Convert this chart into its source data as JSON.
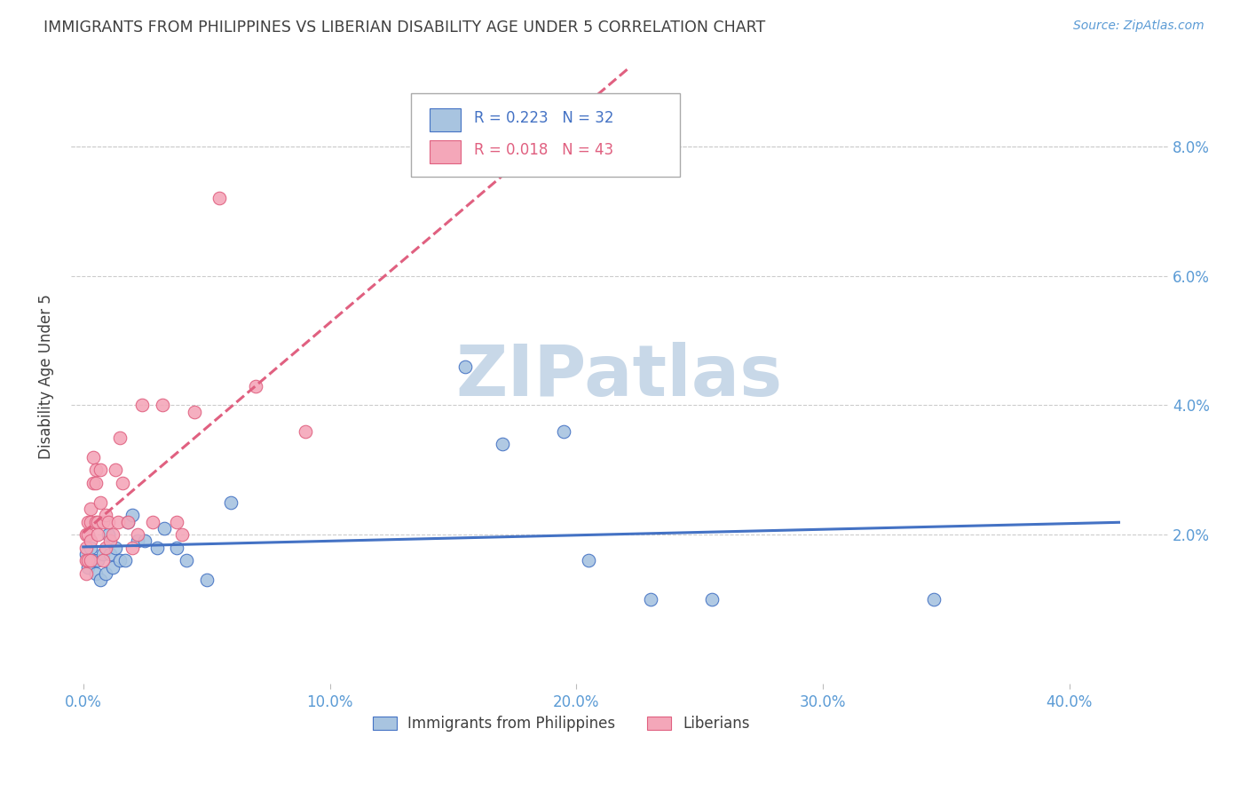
{
  "title": "IMMIGRANTS FROM PHILIPPINES VS LIBERIAN DISABILITY AGE UNDER 5 CORRELATION CHART",
  "source": "Source: ZipAtlas.com",
  "ylabel": "Disability Age Under 5",
  "ylabel_right_ticks": [
    "8.0%",
    "6.0%",
    "4.0%",
    "2.0%"
  ],
  "ylabel_right_vals": [
    0.08,
    0.06,
    0.04,
    0.02
  ],
  "xlabel_ticks": [
    "0.0%",
    "10.0%",
    "20.0%",
    "30.0%",
    "40.0%"
  ],
  "xlabel_tick_vals": [
    0.0,
    0.1,
    0.2,
    0.3,
    0.4
  ],
  "xlim": [
    -0.005,
    0.44
  ],
  "ylim": [
    -0.003,
    0.092
  ],
  "blue_R": 0.223,
  "blue_N": 32,
  "pink_R": 0.018,
  "pink_N": 43,
  "blue_color": "#a8c4e0",
  "pink_color": "#f4a7b9",
  "blue_line_color": "#4472c4",
  "pink_line_color": "#e06080",
  "title_color": "#404040",
  "axis_color": "#5b9bd5",
  "legend_text_blue": "#4472c4",
  "legend_text_pink": "#e06080",
  "watermark_color": "#c8d8e8",
  "grid_color": "#cccccc",
  "blue_x": [
    0.001,
    0.002,
    0.003,
    0.004,
    0.005,
    0.006,
    0.007,
    0.008,
    0.009,
    0.01,
    0.011,
    0.012,
    0.013,
    0.015,
    0.017,
    0.018,
    0.02,
    0.022,
    0.025,
    0.03,
    0.033,
    0.038,
    0.042,
    0.05,
    0.06,
    0.155,
    0.17,
    0.195,
    0.205,
    0.23,
    0.255,
    0.345
  ],
  "blue_y": [
    0.017,
    0.015,
    0.018,
    0.016,
    0.014,
    0.016,
    0.013,
    0.017,
    0.014,
    0.02,
    0.017,
    0.015,
    0.018,
    0.016,
    0.016,
    0.022,
    0.023,
    0.019,
    0.019,
    0.018,
    0.021,
    0.018,
    0.016,
    0.013,
    0.025,
    0.046,
    0.034,
    0.036,
    0.016,
    0.01,
    0.01,
    0.01
  ],
  "pink_x": [
    0.001,
    0.001,
    0.001,
    0.001,
    0.002,
    0.002,
    0.002,
    0.003,
    0.003,
    0.003,
    0.003,
    0.004,
    0.004,
    0.005,
    0.005,
    0.005,
    0.006,
    0.006,
    0.007,
    0.007,
    0.008,
    0.008,
    0.009,
    0.009,
    0.01,
    0.011,
    0.012,
    0.013,
    0.014,
    0.015,
    0.016,
    0.018,
    0.02,
    0.022,
    0.024,
    0.028,
    0.032,
    0.038,
    0.04,
    0.045,
    0.055,
    0.07,
    0.09
  ],
  "pink_y": [
    0.02,
    0.018,
    0.016,
    0.014,
    0.022,
    0.02,
    0.016,
    0.024,
    0.022,
    0.019,
    0.016,
    0.032,
    0.028,
    0.03,
    0.028,
    0.022,
    0.022,
    0.02,
    0.025,
    0.03,
    0.022,
    0.016,
    0.023,
    0.018,
    0.022,
    0.019,
    0.02,
    0.03,
    0.022,
    0.035,
    0.028,
    0.022,
    0.018,
    0.02,
    0.04,
    0.022,
    0.04,
    0.022,
    0.02,
    0.039,
    0.072,
    0.043,
    0.036
  ]
}
